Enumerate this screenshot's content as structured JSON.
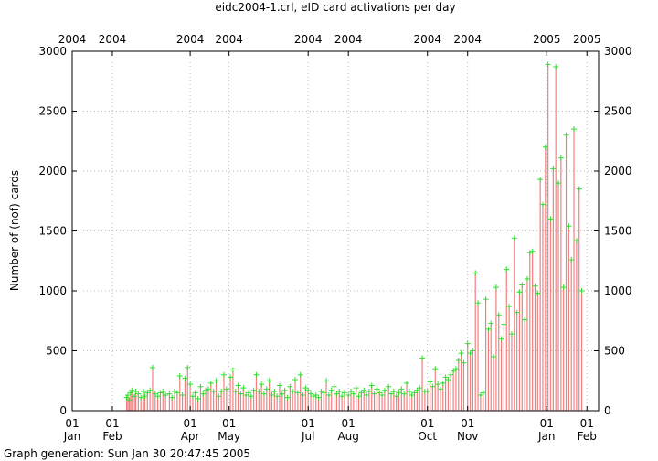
{
  "chart_data": {
    "type": "bar",
    "title": "eidc2004-1.crl, eID card activations per day",
    "ylabel": "Number of (nof) cards",
    "xlabel": "",
    "footer": "Graph generation: Sun Jan 30 20:47:45 2005",
    "ylim": [
      0,
      3000
    ],
    "yticks": [
      0,
      500,
      1000,
      1500,
      2000,
      2500,
      3000
    ],
    "grid": true,
    "legend": "none",
    "colors": {
      "impulse": "#f08080",
      "point": "#33dd33",
      "grid": "#bbbbbb"
    },
    "x_range": [
      "2004-01-01",
      "2005-02-10"
    ],
    "month_ticks": [
      {
        "date": "2004-01-01",
        "day": "01",
        "month": "Jan"
      },
      {
        "date": "2004-02-01",
        "day": "01",
        "month": "Feb"
      },
      {
        "date": "2004-04-01",
        "day": "01",
        "month": "Apr"
      },
      {
        "date": "2004-05-01",
        "day": "01",
        "month": "May"
      },
      {
        "date": "2004-07-01",
        "day": "01",
        "month": "Jul"
      },
      {
        "date": "2004-08-01",
        "day": "01",
        "month": "Aug"
      },
      {
        "date": "2004-10-01",
        "day": "01",
        "month": "Oct"
      },
      {
        "date": "2004-11-01",
        "day": "01",
        "month": "Nov"
      },
      {
        "date": "2005-01-01",
        "day": "01",
        "month": "Jan"
      },
      {
        "date": "2005-02-01",
        "day": "01",
        "month": "Feb"
      }
    ],
    "top_ticks": [
      {
        "date": "2004-01-01",
        "label": "2004"
      },
      {
        "date": "2004-02-01",
        "label": "2004"
      },
      {
        "date": "2004-04-01",
        "label": "2004"
      },
      {
        "date": "2004-05-01",
        "label": "2004"
      },
      {
        "date": "2004-07-01",
        "label": "2004"
      },
      {
        "date": "2004-08-01",
        "label": "2004"
      },
      {
        "date": "2004-10-01",
        "label": "2004"
      },
      {
        "date": "2004-11-01",
        "label": "2004"
      },
      {
        "date": "2005-01-01",
        "label": "2005"
      },
      {
        "date": "2005-02-01",
        "label": "2005"
      }
    ],
    "series": [
      {
        "values": [
          [
            "2004-02-12",
            110
          ],
          [
            "2004-02-13",
            130
          ],
          [
            "2004-02-14",
            90
          ],
          [
            "2004-02-15",
            150
          ],
          [
            "2004-02-16",
            170
          ],
          [
            "2004-02-18",
            120
          ],
          [
            "2004-02-19",
            160
          ],
          [
            "2004-02-21",
            140
          ],
          [
            "2004-02-23",
            110
          ],
          [
            "2004-02-25",
            160
          ],
          [
            "2004-02-26",
            120
          ],
          [
            "2004-02-28",
            150
          ],
          [
            "2004-03-01",
            170
          ],
          [
            "2004-03-03",
            360
          ],
          [
            "2004-03-05",
            140
          ],
          [
            "2004-03-07",
            120
          ],
          [
            "2004-03-09",
            150
          ],
          [
            "2004-03-11",
            160
          ],
          [
            "2004-03-13",
            130
          ],
          [
            "2004-03-16",
            140
          ],
          [
            "2004-03-18",
            110
          ],
          [
            "2004-03-20",
            160
          ],
          [
            "2004-03-22",
            150
          ],
          [
            "2004-03-24",
            290
          ],
          [
            "2004-03-26",
            130
          ],
          [
            "2004-03-28",
            270
          ],
          [
            "2004-03-30",
            360
          ],
          [
            "2004-04-01",
            220
          ],
          [
            "2004-04-03",
            120
          ],
          [
            "2004-04-05",
            150
          ],
          [
            "2004-04-07",
            100
          ],
          [
            "2004-04-09",
            200
          ],
          [
            "2004-04-11",
            140
          ],
          [
            "2004-04-13",
            170
          ],
          [
            "2004-04-15",
            180
          ],
          [
            "2004-04-17",
            230
          ],
          [
            "2004-04-19",
            160
          ],
          [
            "2004-04-21",
            250
          ],
          [
            "2004-04-23",
            120
          ],
          [
            "2004-04-25",
            160
          ],
          [
            "2004-04-27",
            300
          ],
          [
            "2004-04-29",
            180
          ],
          [
            "2004-05-02",
            280
          ],
          [
            "2004-05-04",
            340
          ],
          [
            "2004-05-06",
            160
          ],
          [
            "2004-05-08",
            210
          ],
          [
            "2004-05-10",
            140
          ],
          [
            "2004-05-12",
            190
          ],
          [
            "2004-05-14",
            130
          ],
          [
            "2004-05-16",
            150
          ],
          [
            "2004-05-18",
            120
          ],
          [
            "2004-05-20",
            170
          ],
          [
            "2004-05-22",
            300
          ],
          [
            "2004-05-24",
            160
          ],
          [
            "2004-05-26",
            220
          ],
          [
            "2004-05-28",
            140
          ],
          [
            "2004-05-30",
            180
          ],
          [
            "2004-06-01",
            250
          ],
          [
            "2004-06-03",
            130
          ],
          [
            "2004-06-05",
            160
          ],
          [
            "2004-06-07",
            120
          ],
          [
            "2004-06-09",
            210
          ],
          [
            "2004-06-11",
            140
          ],
          [
            "2004-06-13",
            170
          ],
          [
            "2004-06-15",
            110
          ],
          [
            "2004-06-17",
            200
          ],
          [
            "2004-06-19",
            160
          ],
          [
            "2004-06-21",
            260
          ],
          [
            "2004-06-23",
            150
          ],
          [
            "2004-06-25",
            300
          ],
          [
            "2004-06-27",
            130
          ],
          [
            "2004-06-29",
            190
          ],
          [
            "2004-07-01",
            170
          ],
          [
            "2004-07-03",
            140
          ],
          [
            "2004-07-05",
            120
          ],
          [
            "2004-07-07",
            130
          ],
          [
            "2004-07-09",
            110
          ],
          [
            "2004-07-11",
            160
          ],
          [
            "2004-07-13",
            150
          ],
          [
            "2004-07-15",
            250
          ],
          [
            "2004-07-17",
            130
          ],
          [
            "2004-07-19",
            170
          ],
          [
            "2004-07-21",
            200
          ],
          [
            "2004-07-23",
            140
          ],
          [
            "2004-07-25",
            160
          ],
          [
            "2004-07-27",
            120
          ],
          [
            "2004-07-29",
            150
          ],
          [
            "2004-08-01",
            130
          ],
          [
            "2004-08-03",
            160
          ],
          [
            "2004-08-05",
            140
          ],
          [
            "2004-08-07",
            190
          ],
          [
            "2004-08-09",
            120
          ],
          [
            "2004-08-11",
            150
          ],
          [
            "2004-08-13",
            170
          ],
          [
            "2004-08-15",
            130
          ],
          [
            "2004-08-17",
            160
          ],
          [
            "2004-08-19",
            210
          ],
          [
            "2004-08-21",
            140
          ],
          [
            "2004-08-23",
            180
          ],
          [
            "2004-08-25",
            150
          ],
          [
            "2004-08-27",
            130
          ],
          [
            "2004-08-29",
            170
          ],
          [
            "2004-09-01",
            200
          ],
          [
            "2004-09-03",
            140
          ],
          [
            "2004-09-05",
            160
          ],
          [
            "2004-09-07",
            120
          ],
          [
            "2004-09-09",
            150
          ],
          [
            "2004-09-11",
            180
          ],
          [
            "2004-09-13",
            140
          ],
          [
            "2004-09-15",
            230
          ],
          [
            "2004-09-17",
            160
          ],
          [
            "2004-09-19",
            130
          ],
          [
            "2004-09-21",
            150
          ],
          [
            "2004-09-23",
            170
          ],
          [
            "2004-09-25",
            190
          ],
          [
            "2004-09-27",
            440
          ],
          [
            "2004-09-29",
            160
          ],
          [
            "2004-10-01",
            160
          ],
          [
            "2004-10-03",
            240
          ],
          [
            "2004-10-05",
            200
          ],
          [
            "2004-10-07",
            350
          ],
          [
            "2004-10-09",
            220
          ],
          [
            "2004-10-11",
            180
          ],
          [
            "2004-10-13",
            230
          ],
          [
            "2004-10-15",
            280
          ],
          [
            "2004-10-17",
            260
          ],
          [
            "2004-10-19",
            300
          ],
          [
            "2004-10-21",
            330
          ],
          [
            "2004-10-23",
            350
          ],
          [
            "2004-10-25",
            420
          ],
          [
            "2004-10-27",
            480
          ],
          [
            "2004-10-29",
            400
          ],
          [
            "2004-11-01",
            560
          ],
          [
            "2004-11-03",
            480
          ],
          [
            "2004-11-05",
            500
          ],
          [
            "2004-11-07",
            1150
          ],
          [
            "2004-11-09",
            900
          ],
          [
            "2004-11-11",
            130
          ],
          [
            "2004-11-13",
            150
          ],
          [
            "2004-11-15",
            930
          ],
          [
            "2004-11-17",
            680
          ],
          [
            "2004-11-19",
            730
          ],
          [
            "2004-11-21",
            450
          ],
          [
            "2004-11-23",
            1030
          ],
          [
            "2004-11-25",
            800
          ],
          [
            "2004-11-27",
            600
          ],
          [
            "2004-11-29",
            720
          ],
          [
            "2004-12-01",
            1180
          ],
          [
            "2004-12-03",
            870
          ],
          [
            "2004-12-05",
            640
          ],
          [
            "2004-12-07",
            1440
          ],
          [
            "2004-12-09",
            820
          ],
          [
            "2004-12-11",
            990
          ],
          [
            "2004-12-13",
            1050
          ],
          [
            "2004-12-15",
            760
          ],
          [
            "2004-12-17",
            1100
          ],
          [
            "2004-12-19",
            1320
          ],
          [
            "2004-12-21",
            1330
          ],
          [
            "2004-12-23",
            1040
          ],
          [
            "2004-12-25",
            980
          ],
          [
            "2004-12-27",
            1930
          ],
          [
            "2004-12-29",
            1720
          ],
          [
            "2004-12-31",
            2200
          ],
          [
            "2005-01-02",
            2890
          ],
          [
            "2005-01-04",
            1600
          ],
          [
            "2005-01-06",
            2020
          ],
          [
            "2005-01-08",
            2870
          ],
          [
            "2005-01-10",
            1900
          ],
          [
            "2005-01-12",
            2110
          ],
          [
            "2005-01-14",
            1030
          ],
          [
            "2005-01-16",
            2300
          ],
          [
            "2005-01-18",
            1540
          ],
          [
            "2005-01-20",
            1260
          ],
          [
            "2005-01-22",
            2350
          ],
          [
            "2005-01-24",
            1420
          ],
          [
            "2005-01-26",
            1850
          ],
          [
            "2005-01-28",
            1000
          ]
        ]
      }
    ]
  }
}
